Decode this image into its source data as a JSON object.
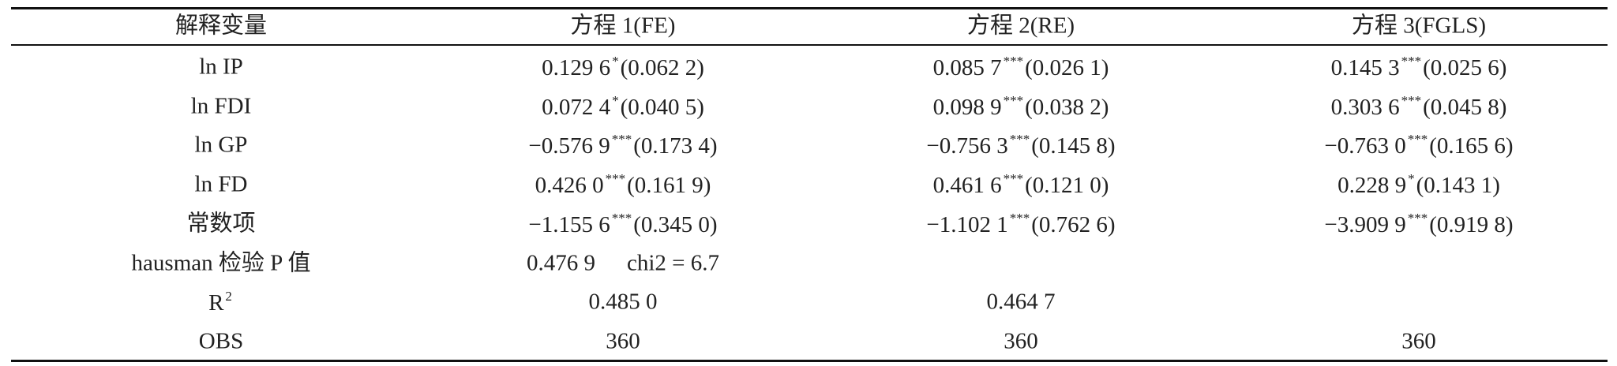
{
  "table": {
    "header": [
      "解释变量",
      "方程 1(FE)",
      "方程 2(RE)",
      "方程 3(FGLS)"
    ],
    "rows": [
      {
        "label": "ln IP",
        "cells": [
          {
            "coef": "0.129 6",
            "stars": "*",
            "se": "(0.062 2)"
          },
          {
            "coef": "0.085 7",
            "stars": "***",
            "se": "(0.026 1)"
          },
          {
            "coef": "0.145 3",
            "stars": "***",
            "se": "(0.025 6)"
          }
        ]
      },
      {
        "label": "ln FDI",
        "cells": [
          {
            "coef": "0.072 4",
            "stars": "*",
            "se": "(0.040 5)"
          },
          {
            "coef": "0.098 9",
            "stars": "***",
            "se": "(0.038 2)"
          },
          {
            "coef": "0.303 6",
            "stars": "***",
            "se": "(0.045 8)"
          }
        ]
      },
      {
        "label": "ln GP",
        "cells": [
          {
            "coef": "−0.576 9",
            "stars": "***",
            "se": "(0.173 4)"
          },
          {
            "coef": "−0.756 3",
            "stars": "***",
            "se": "(0.145 8)"
          },
          {
            "coef": "−0.763 0",
            "stars": "***",
            "se": "(0.165 6)"
          }
        ]
      },
      {
        "label": "ln FD",
        "cells": [
          {
            "coef": "0.426 0",
            "stars": "***",
            "se": "(0.161 9)"
          },
          {
            "coef": "0.461 6",
            "stars": "***",
            "se": "(0.121 0)"
          },
          {
            "coef": "0.228 9",
            "stars": "*",
            "se": "(0.143 1)"
          }
        ]
      },
      {
        "label": "常数项",
        "cells": [
          {
            "coef": "−1.155 6",
            "stars": "***",
            "se": "(0.345 0)"
          },
          {
            "coef": "−1.102 1",
            "stars": "***",
            "se": "(0.762 6)"
          },
          {
            "coef": "−3.909 9",
            "stars": "***",
            "se": "(0.919 8)"
          }
        ]
      },
      {
        "label": "hausman 检验 P 值",
        "cells": [
          {
            "coef": "0.476 9",
            "note": "chi2 = 6.7"
          }
        ]
      },
      {
        "label": {
          "text": "R",
          "sup": "2"
        },
        "cells": [
          {
            "coef": "0.485 0"
          },
          {
            "coef": "0.464 7"
          }
        ]
      },
      {
        "label": "OBS",
        "cells": [
          {
            "coef": "360"
          },
          {
            "coef": "360"
          },
          {
            "coef": "360"
          }
        ]
      }
    ]
  }
}
